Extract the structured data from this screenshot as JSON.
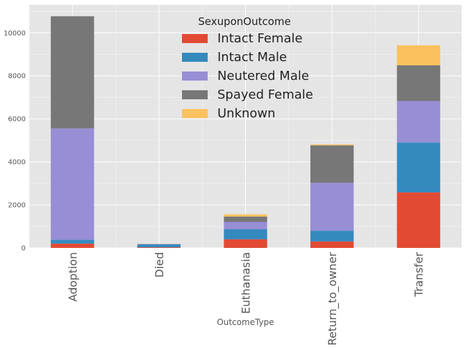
{
  "chart_data": {
    "type": "bar",
    "stacked": true,
    "categories": [
      "Adoption",
      "Died",
      "Euthanasia",
      "Return_to_owner",
      "Transfer"
    ],
    "series": [
      {
        "name": "Intact Female",
        "color": "#E24A33",
        "values": [
          200,
          30,
          400,
          300,
          2580
        ]
      },
      {
        "name": "Intact Male",
        "color": "#348ABD",
        "values": [
          180,
          130,
          470,
          500,
          2320
        ]
      },
      {
        "name": "Neutered Male",
        "color": "#988ED5",
        "values": [
          5180,
          15,
          340,
          2230,
          1930
        ]
      },
      {
        "name": "Spayed Female",
        "color": "#777777",
        "values": [
          5210,
          10,
          250,
          1740,
          1660
        ]
      },
      {
        "name": "Unknown",
        "color": "#FBC15E",
        "values": [
          0,
          5,
          100,
          40,
          930
        ]
      }
    ],
    "title": "",
    "xlabel": "OutcomeType",
    "ylabel": "",
    "ylim": [
      0,
      11300
    ],
    "yticks": [
      0,
      2000,
      4000,
      6000,
      8000,
      10000
    ],
    "legend": {
      "title": "SexuponOutcome",
      "position": "top-center"
    },
    "grid": true,
    "background": "#E5E5E5",
    "grid_color": "#FFFFFF"
  }
}
